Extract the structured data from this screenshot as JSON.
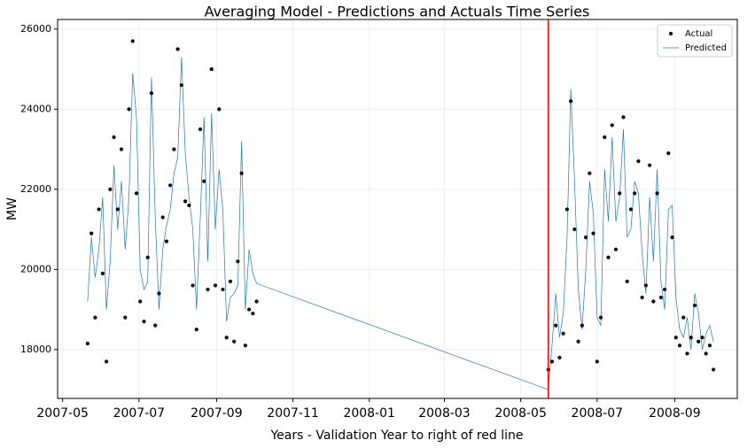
{
  "chart_data": {
    "type": "timeseries",
    "title": "Averaging Model - Predictions and Actuals Time Series",
    "x_label": "Years - Validation Year to right of red line",
    "y_label": "MW",
    "x": [
      "2007-05-21",
      "2007-05-24",
      "2007-05-27",
      "2007-05-30",
      "2007-06-02",
      "2007-06-05",
      "2007-06-08",
      "2007-06-11",
      "2007-06-14",
      "2007-06-17",
      "2007-06-20",
      "2007-06-23",
      "2007-06-26",
      "2007-06-29",
      "2007-07-02",
      "2007-07-05",
      "2007-07-08",
      "2007-07-11",
      "2007-07-14",
      "2007-07-17",
      "2007-07-20",
      "2007-07-23",
      "2007-07-26",
      "2007-07-29",
      "2007-08-01",
      "2007-08-04",
      "2007-08-07",
      "2007-08-10",
      "2007-08-13",
      "2007-08-16",
      "2007-08-19",
      "2007-08-22",
      "2007-08-25",
      "2007-08-28",
      "2007-08-31",
      "2007-09-03",
      "2007-09-06",
      "2007-09-09",
      "2007-09-12",
      "2007-09-15",
      "2007-09-18",
      "2007-09-21",
      "2007-09-24",
      "2007-09-27",
      "2007-09-30",
      "2007-10-03",
      "2008-05-23",
      "2008-05-26",
      "2008-05-29",
      "2008-06-01",
      "2008-06-04",
      "2008-06-07",
      "2008-06-10",
      "2008-06-13",
      "2008-06-16",
      "2008-06-19",
      "2008-06-22",
      "2008-06-25",
      "2008-06-28",
      "2008-07-01",
      "2008-07-04",
      "2008-07-07",
      "2008-07-10",
      "2008-07-13",
      "2008-07-16",
      "2008-07-19",
      "2008-07-22",
      "2008-07-25",
      "2008-07-28",
      "2008-07-31",
      "2008-08-03",
      "2008-08-06",
      "2008-08-09",
      "2008-08-12",
      "2008-08-15",
      "2008-08-18",
      "2008-08-21",
      "2008-08-24",
      "2008-08-27",
      "2008-08-30",
      "2008-09-02",
      "2008-09-05",
      "2008-09-08",
      "2008-09-11",
      "2008-09-14",
      "2008-09-17",
      "2008-09-20",
      "2008-09-23",
      "2008-09-26",
      "2008-09-29",
      "2008-10-02"
    ],
    "series": [
      {
        "name": "Actual",
        "color": "#000000",
        "mode": "markers",
        "values": [
          18150,
          20900,
          18800,
          21500,
          19900,
          17700,
          22000,
          23300,
          21500,
          23000,
          18800,
          24000,
          25700,
          21900,
          19200,
          18700,
          20300,
          24400,
          18600,
          19400,
          21300,
          20700,
          22100,
          23000,
          25500,
          24600,
          21700,
          21600,
          19600,
          18500,
          23500,
          22200,
          19500,
          25000,
          19600,
          24000,
          19500,
          18300,
          19700,
          18200,
          20200,
          22400,
          18100,
          19000,
          18900,
          19200,
          17500,
          17700,
          18600,
          17800,
          18400,
          21500,
          24200,
          21000,
          18200,
          18600,
          20800,
          22400,
          20900,
          17700,
          18800,
          23300,
          20300,
          23600,
          20500,
          21900,
          23800,
          19700,
          21500,
          21900,
          22700,
          19300,
          19600,
          22600,
          19200,
          21900,
          19300,
          19500,
          22900,
          20800,
          18300,
          18100,
          18800,
          17900,
          18300,
          19100,
          18200,
          18300,
          17900,
          18100,
          17500
        ]
      },
      {
        "name": "Predicted",
        "color": "#1f77b4",
        "mode": "line",
        "values": [
          19200,
          20800,
          19800,
          20500,
          21800,
          19000,
          20200,
          22600,
          21000,
          22200,
          20500,
          21800,
          24900,
          23800,
          20000,
          19500,
          19700,
          24800,
          21300,
          19000,
          20500,
          21100,
          21500,
          22400,
          22800,
          25300,
          22900,
          21800,
          21000,
          19000,
          21300,
          23800,
          20200,
          23900,
          21000,
          22500,
          21500,
          18700,
          19300,
          19400,
          19600,
          23200,
          19000,
          20500,
          19900,
          19650,
          17000,
          18100,
          19400,
          18300,
          18900,
          20800,
          24500,
          22200,
          19500,
          18500,
          20000,
          22200,
          21400,
          18800,
          18600,
          22500,
          21200,
          23300,
          21200,
          21800,
          23500,
          20800,
          21000,
          22200,
          21900,
          20400,
          19400,
          21800,
          20200,
          22500,
          19700,
          19000,
          21500,
          21600,
          19300,
          18500,
          18300,
          18800,
          18000,
          19400,
          18900,
          18000,
          18400,
          18600,
          18200
        ]
      }
    ],
    "xlim": [
      "2007-04-27",
      "2008-10-21"
    ],
    "xticks": [
      {
        "value": "2007-05-01",
        "label": "2007-05"
      },
      {
        "value": "2007-07-01",
        "label": "2007-07"
      },
      {
        "value": "2007-09-01",
        "label": "2007-09"
      },
      {
        "value": "2007-11-01",
        "label": "2007-11"
      },
      {
        "value": "2008-01-01",
        "label": "2008-01"
      },
      {
        "value": "2008-03-01",
        "label": "2008-03"
      },
      {
        "value": "2008-05-01",
        "label": "2008-05"
      },
      {
        "value": "2008-07-01",
        "label": "2008-07"
      },
      {
        "value": "2008-09-01",
        "label": "2008-09"
      }
    ],
    "ylim": [
      16780,
      26240
    ],
    "yticks": [
      18000,
      20000,
      22000,
      24000,
      26000
    ],
    "grid": true,
    "legend": "upper right",
    "vline": {
      "x": "2008-05-23",
      "color": "#ff0000"
    }
  }
}
